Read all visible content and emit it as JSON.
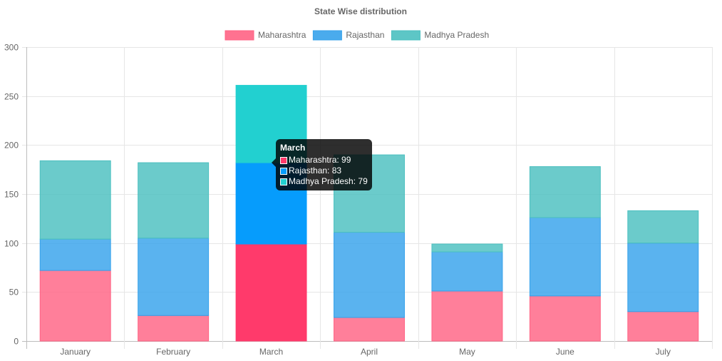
{
  "chart_data": {
    "type": "bar",
    "stacked": true,
    "title": "State Wise distribution",
    "categories": [
      "January",
      "February",
      "March",
      "April",
      "May",
      "June",
      "July"
    ],
    "series": [
      {
        "name": "Maharashtra",
        "color": "#ff6384",
        "values": [
          72,
          26,
          99,
          24,
          51,
          46,
          30
        ]
      },
      {
        "name": "Rajasthan",
        "color": "#36a2eb",
        "values": [
          32,
          79,
          83,
          87,
          40,
          80,
          70
        ]
      },
      {
        "name": "Madhya Pradesh",
        "color": "#4bc0c0",
        "values": [
          80,
          77,
          79,
          79,
          8,
          52,
          33
        ]
      }
    ],
    "ylim": [
      0,
      300
    ],
    "yticks": [
      0,
      50,
      100,
      150,
      200,
      250,
      300
    ],
    "grid": true,
    "legend_position": "top",
    "highlighted_category": "March",
    "highlight_colors": [
      "#ff3a6b",
      "#069cfc",
      "#22d0d0"
    ]
  },
  "tooltip": {
    "title": "March",
    "rows": [
      {
        "label": "Maharashtra: 99",
        "color": "#ff3a6b"
      },
      {
        "label": "Rajasthan: 83",
        "color": "#069cfc"
      },
      {
        "label": "Madhya Pradesh: 79",
        "color": "#22d0d0"
      }
    ]
  }
}
